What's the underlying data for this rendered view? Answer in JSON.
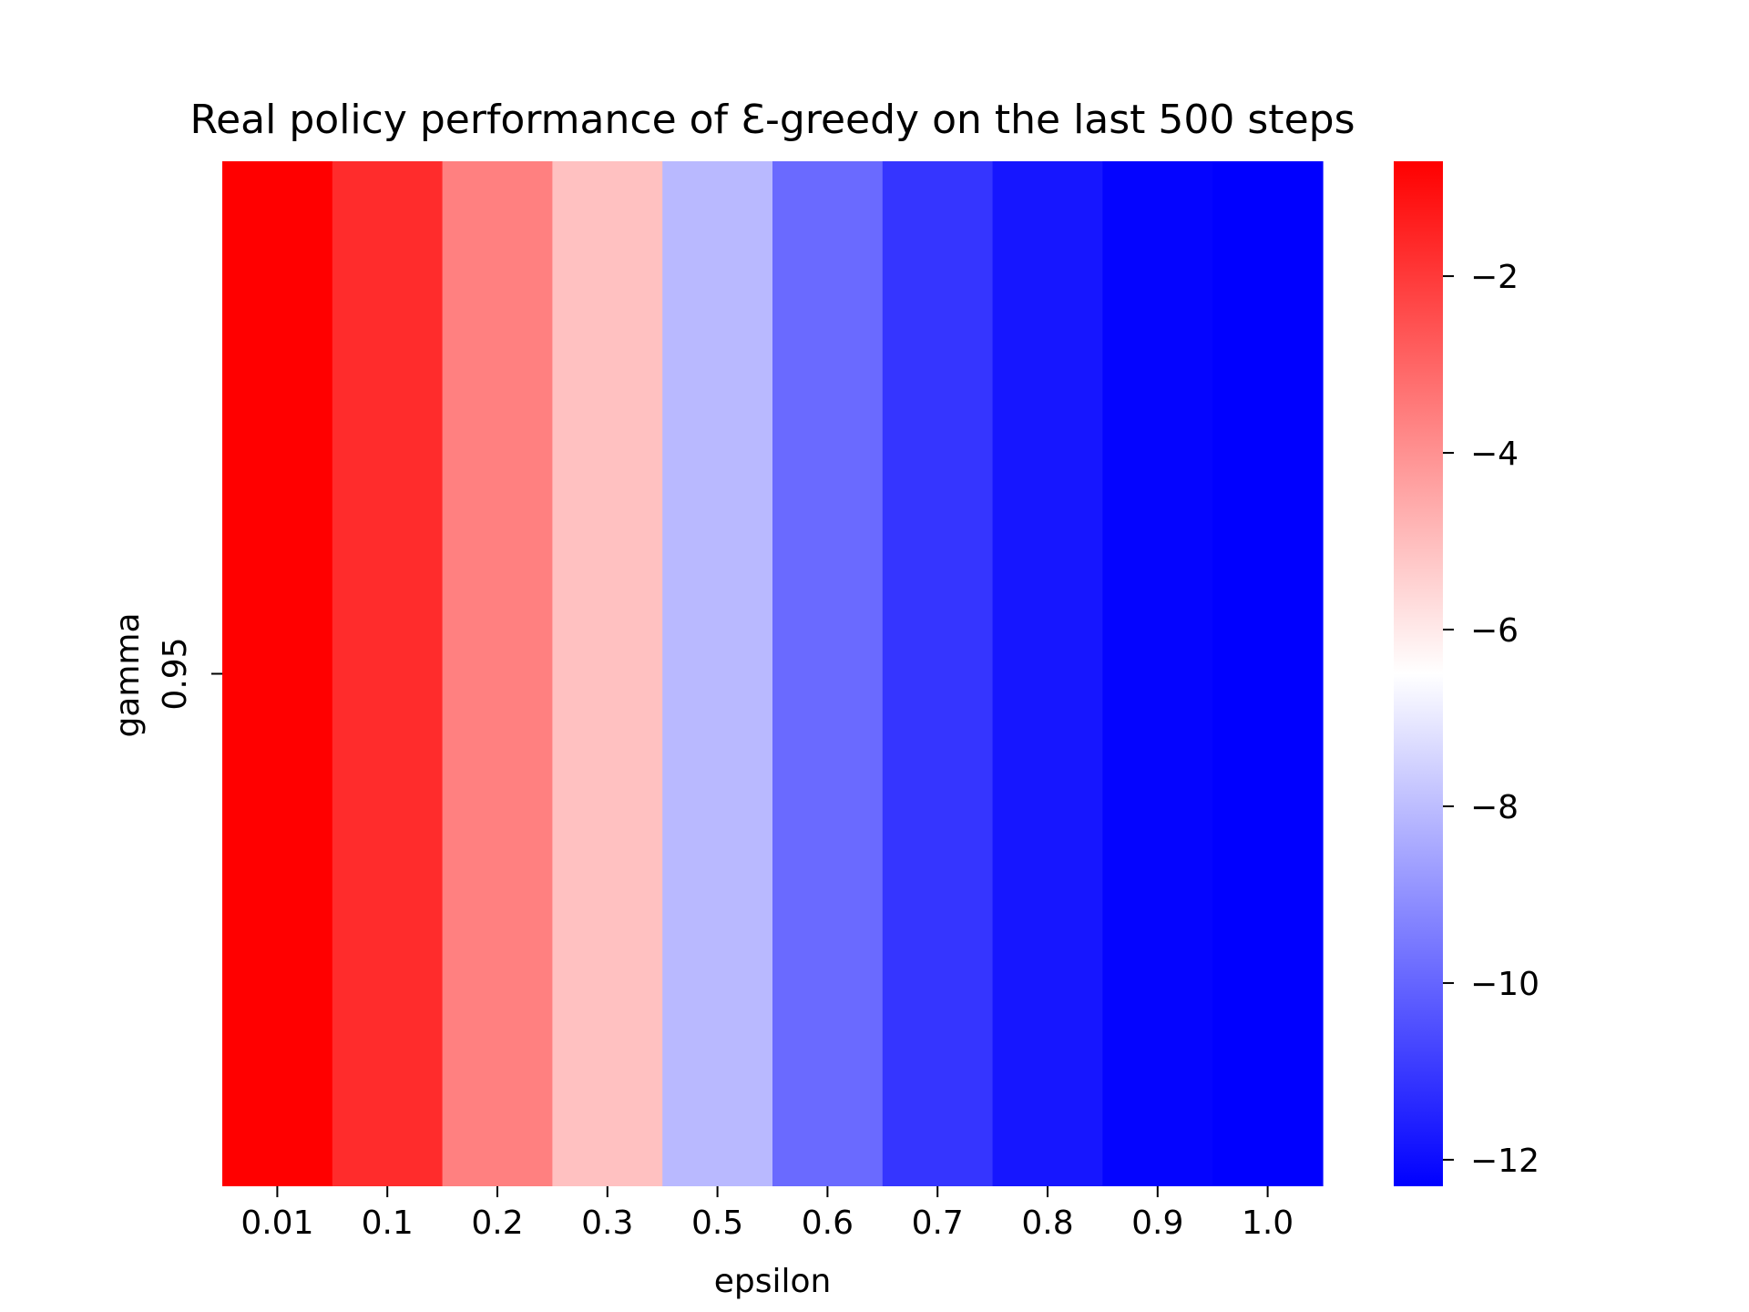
{
  "chart_data": {
    "type": "heatmap",
    "title": "Real policy performance of Ɛ-greedy on the last 500 steps",
    "xlabel": "epsilon",
    "ylabel": "gamma",
    "x_categories": [
      "0.01",
      "0.1",
      "0.2",
      "0.3",
      "0.5",
      "0.6",
      "0.7",
      "0.8",
      "0.9",
      "1.0"
    ],
    "y_categories": [
      "0.95"
    ],
    "values": [
      [
        -0.7,
        -1.7,
        -3.6,
        -5.1,
        -8.1,
        -9.9,
        -11.1,
        -11.8,
        -12.2,
        -12.3
      ]
    ],
    "colormap": "bwr",
    "vmin": -12.3,
    "vmax": -0.7,
    "colorbar": {
      "ticks": [
        -2,
        -4,
        -6,
        -8,
        -10,
        -12
      ],
      "tick_labels": [
        "−2",
        "−4",
        "−6",
        "−8",
        "−10",
        "−12"
      ]
    },
    "colors": {
      "low": "#0000ff",
      "mid": "#ffffff",
      "high": "#ff0000"
    }
  }
}
